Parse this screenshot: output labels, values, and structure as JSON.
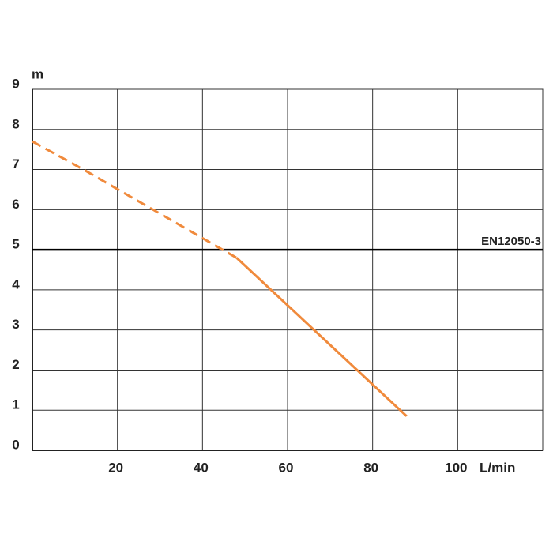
{
  "chart_data": {
    "type": "line",
    "x_label": "L/min",
    "y_label": "m",
    "xlim": [
      0,
      120
    ],
    "xticks": [
      20,
      40,
      60,
      80,
      100
    ],
    "ylim": [
      0,
      9
    ],
    "yticks": [
      0,
      1,
      2,
      3,
      4,
      5,
      6,
      7,
      8,
      9
    ],
    "grid": true,
    "reference_line": {
      "value": 5,
      "label": "EN12050-3"
    },
    "series": [
      {
        "color": "#f08a3c",
        "dashed": true,
        "x": [
          0,
          12,
          48
        ],
        "values": [
          7.7,
          7.0,
          4.8
        ]
      },
      {
        "color": "#f08a3c",
        "dashed": false,
        "x": [
          48,
          88
        ],
        "values": [
          4.8,
          0.85
        ]
      }
    ]
  }
}
